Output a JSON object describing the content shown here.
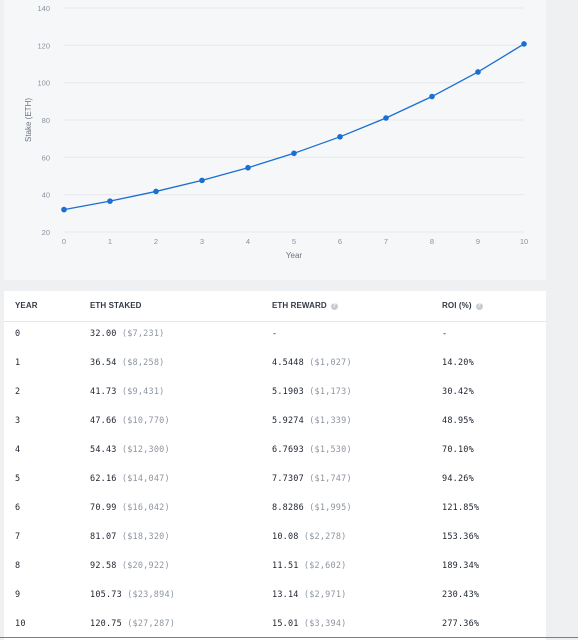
{
  "chart_data": {
    "type": "line",
    "x": [
      0,
      1,
      2,
      3,
      4,
      5,
      6,
      7,
      8,
      9,
      10
    ],
    "values": [
      32.0,
      36.54,
      41.73,
      47.66,
      54.43,
      62.16,
      70.99,
      81.07,
      92.58,
      105.73,
      120.75
    ],
    "xlabel": "Year",
    "ylabel": "Stake (ETH)",
    "x_ticks": [
      "0",
      "1",
      "2",
      "3",
      "4",
      "5",
      "6",
      "7",
      "8",
      "9",
      "10"
    ],
    "y_ticks": [
      "20",
      "40",
      "60",
      "80",
      "100",
      "120",
      "140"
    ],
    "ylim": [
      20,
      140
    ],
    "xlim": [
      0,
      10
    ],
    "grid": "horizontal",
    "line_color": "#1a6fd0"
  },
  "table": {
    "headers": {
      "year": "YEAR",
      "eth_staked": "ETH STAKED",
      "eth_reward": "ETH REWARD",
      "roi": "ROI (%)"
    },
    "help_icon": "question-circle-icon",
    "rows": [
      {
        "year": "0",
        "staked": "32.00",
        "staked_usd": "($7,231)",
        "reward": "-",
        "reward_usd": "",
        "roi": "-"
      },
      {
        "year": "1",
        "staked": "36.54",
        "staked_usd": "($8,258)",
        "reward": "4.5448",
        "reward_usd": "($1,027)",
        "roi": "14.20%"
      },
      {
        "year": "2",
        "staked": "41.73",
        "staked_usd": "($9,431)",
        "reward": "5.1903",
        "reward_usd": "($1,173)",
        "roi": "30.42%"
      },
      {
        "year": "3",
        "staked": "47.66",
        "staked_usd": "($10,770)",
        "reward": "5.9274",
        "reward_usd": "($1,339)",
        "roi": "48.95%"
      },
      {
        "year": "4",
        "staked": "54.43",
        "staked_usd": "($12,300)",
        "reward": "6.7693",
        "reward_usd": "($1,530)",
        "roi": "70.10%"
      },
      {
        "year": "5",
        "staked": "62.16",
        "staked_usd": "($14,047)",
        "reward": "7.7307",
        "reward_usd": "($1,747)",
        "roi": "94.26%"
      },
      {
        "year": "6",
        "staked": "70.99",
        "staked_usd": "($16,042)",
        "reward": "8.8286",
        "reward_usd": "($1,995)",
        "roi": "121.85%"
      },
      {
        "year": "7",
        "staked": "81.07",
        "staked_usd": "($18,320)",
        "reward": "10.08",
        "reward_usd": "($2,278)",
        "roi": "153.36%"
      },
      {
        "year": "8",
        "staked": "92.58",
        "staked_usd": "($20,922)",
        "reward": "11.51",
        "reward_usd": "($2,602)",
        "roi": "189.34%"
      },
      {
        "year": "9",
        "staked": "105.73",
        "staked_usd": "($23,894)",
        "reward": "13.14",
        "reward_usd": "($2,971)",
        "roi": "230.43%"
      },
      {
        "year": "10",
        "staked": "120.75",
        "staked_usd": "($27,287)",
        "reward": "15.01",
        "reward_usd": "($3,394)",
        "roi": "277.36%"
      }
    ]
  }
}
